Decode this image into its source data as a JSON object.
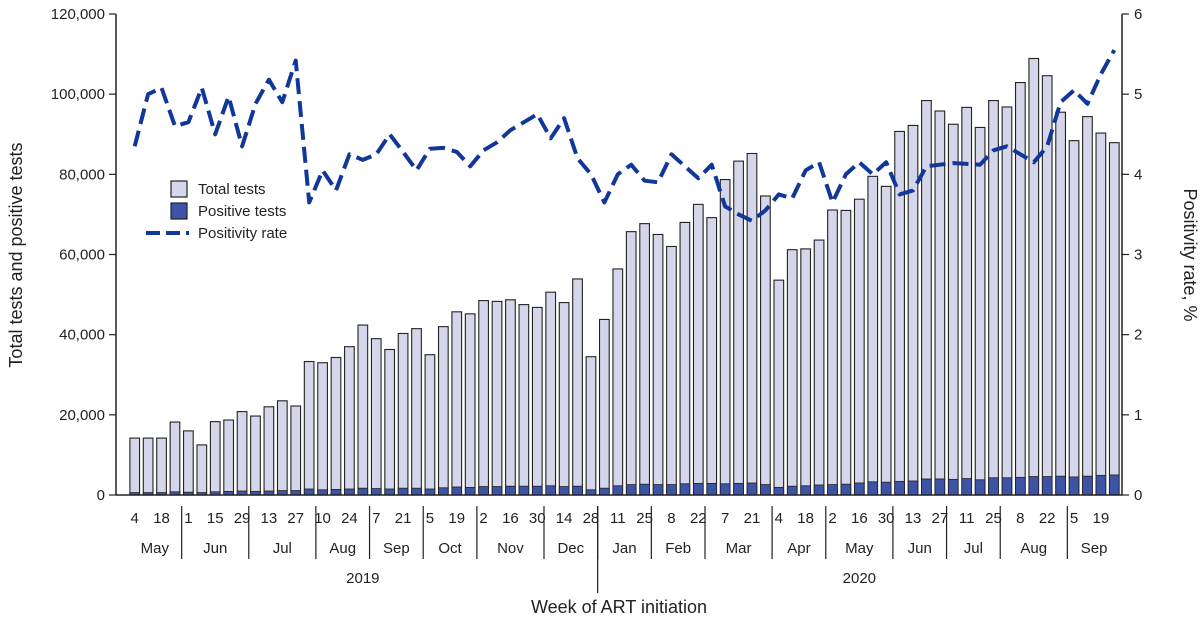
{
  "chart_data": {
    "type": "bar",
    "xlabel": "Week of ART initiation",
    "ylabel": "Total tests and positive tests",
    "y2label": "Positivity rate, %",
    "ylim": [
      0,
      120000
    ],
    "y2lim": [
      0,
      6
    ],
    "yticks": [
      "0",
      "20,000",
      "40,000",
      "60,000",
      "80,000",
      "100,000",
      "120,000"
    ],
    "y2ticks": [
      "0",
      "1",
      "2",
      "3",
      "4",
      "5",
      "6"
    ],
    "legend_position": "upper-left",
    "colors": {
      "total": "#d6d6ea",
      "positive": "#3d54a6",
      "rate": "#12379a",
      "axis": "#222222"
    },
    "week_labels": [
      "4",
      "",
      "18",
      "",
      "1",
      "",
      "15",
      "",
      "29",
      "",
      "13",
      "",
      "27",
      "",
      "10",
      "",
      "24",
      "",
      "7",
      "",
      "21",
      "",
      "5",
      "",
      "19",
      "",
      "2",
      "",
      "16",
      "",
      "30",
      "",
      "14",
      "",
      "28",
      "",
      "11",
      "",
      "25",
      "",
      "8",
      "",
      "22",
      "",
      "7",
      "",
      "21",
      "",
      "4",
      "",
      "18",
      "",
      "2",
      "",
      "16",
      "",
      "30",
      "",
      "13",
      "",
      "27",
      "",
      "11",
      "",
      "25",
      "",
      "8",
      "",
      "22",
      "",
      "5",
      "",
      "19"
    ],
    "months": [
      {
        "label": "May",
        "start": 0,
        "end": 4
      },
      {
        "label": "Jun",
        "start": 4,
        "end": 9
      },
      {
        "label": "Jul",
        "start": 9,
        "end": 14
      },
      {
        "label": "Aug",
        "start": 14,
        "end": 18
      },
      {
        "label": "Sep",
        "start": 18,
        "end": 22
      },
      {
        "label": "Oct",
        "start": 22,
        "end": 26
      },
      {
        "label": "Nov",
        "start": 26,
        "end": 31
      },
      {
        "label": "Dec",
        "start": 31,
        "end": 35
      },
      {
        "label": "Jan",
        "start": 35,
        "end": 39
      },
      {
        "label": "Feb",
        "start": 39,
        "end": 43
      },
      {
        "label": "Mar",
        "start": 43,
        "end": 48
      },
      {
        "label": "Apr",
        "start": 48,
        "end": 52
      },
      {
        "label": "May",
        "start": 52,
        "end": 57
      },
      {
        "label": "Jun",
        "start": 57,
        "end": 61
      },
      {
        "label": "Jul",
        "start": 61,
        "end": 65
      },
      {
        "label": "Aug",
        "start": 65,
        "end": 70
      },
      {
        "label": "Sep",
        "start": 70,
        "end": 74
      }
    ],
    "years": [
      {
        "label": "2019",
        "start": 0,
        "end": 35
      },
      {
        "label": "2020",
        "start": 35,
        "end": 74
      }
    ],
    "series": [
      {
        "name": "Total tests",
        "type": "bar",
        "values": [
          14200,
          14200,
          14200,
          18200,
          16000,
          12500,
          18300,
          18700,
          20800,
          19700,
          22000,
          23500,
          22200,
          33300,
          33000,
          34300,
          37000,
          42400,
          39000,
          36300,
          40300,
          41500,
          35000,
          42000,
          45700,
          45200,
          48500,
          48300,
          48700,
          47500,
          46800,
          50600,
          48000,
          53900,
          34500,
          43800,
          56400,
          65700,
          67700,
          65000,
          62000,
          68000,
          72500,
          69200,
          78700,
          83300,
          85200,
          74600,
          53600,
          61200,
          61400,
          63600,
          71100,
          71000,
          73800,
          79500,
          77000,
          90700,
          92200,
          98400,
          95800,
          92500,
          96700,
          91700,
          98400,
          96800,
          102900,
          108900,
          104600,
          95500,
          88400,
          94400,
          90300,
          87900
        ]
      },
      {
        "name": "Positive tests",
        "type": "bar",
        "values": [
          600,
          600,
          600,
          800,
          700,
          600,
          800,
          900,
          1000,
          900,
          1000,
          1100,
          1100,
          1500,
          1300,
          1400,
          1500,
          1700,
          1600,
          1500,
          1700,
          1700,
          1500,
          1800,
          2000,
          1900,
          2100,
          2100,
          2200,
          2200,
          2200,
          2300,
          2100,
          2200,
          1300,
          1700,
          2300,
          2600,
          2700,
          2600,
          2600,
          2800,
          2900,
          2900,
          2800,
          2900,
          3000,
          2600,
          1900,
          2200,
          2300,
          2500,
          2600,
          2700,
          3000,
          3300,
          3200,
          3400,
          3500,
          4000,
          4000,
          3900,
          4100,
          3800,
          4300,
          4300,
          4400,
          4600,
          4600,
          4700,
          4500,
          4700,
          4900,
          5000
        ]
      },
      {
        "name": "Positivity rate",
        "type": "line",
        "axis": "right",
        "values": [
          4.35,
          5.0,
          5.08,
          4.6,
          4.65,
          5.08,
          4.5,
          4.97,
          4.35,
          4.88,
          5.18,
          4.9,
          5.42,
          3.65,
          4.05,
          3.8,
          4.25,
          4.18,
          4.25,
          4.5,
          4.28,
          4.05,
          4.32,
          4.33,
          4.28,
          4.1,
          4.3,
          4.4,
          4.55,
          4.65,
          4.75,
          4.45,
          4.7,
          4.2,
          4.0,
          3.65,
          4.0,
          4.12,
          3.92,
          3.9,
          4.25,
          4.1,
          3.95,
          4.12,
          3.6,
          3.5,
          3.42,
          3.55,
          3.75,
          3.7,
          4.05,
          4.15,
          3.65,
          4.0,
          4.15,
          4.0,
          4.15,
          3.75,
          3.8,
          4.1,
          4.12,
          4.14,
          4.13,
          4.12,
          4.3,
          4.35,
          4.25,
          4.15,
          4.35,
          4.9,
          5.05,
          4.88,
          5.25,
          5.55
        ]
      }
    ]
  }
}
